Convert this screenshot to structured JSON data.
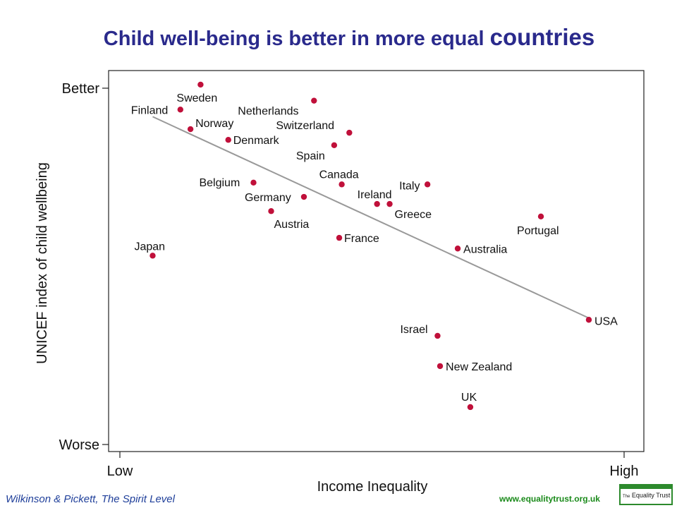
{
  "title": {
    "main": "Child well-being is better in more equal",
    "emphasis": "countries"
  },
  "credit": "Wilkinson & Pickett, The Spirit Level",
  "website": "www.equalitytrust.org.uk",
  "logo": {
    "small": "The",
    "text": "Equality Trust"
  },
  "colors": {
    "title": "#2a2a8c",
    "point": "#c0103a",
    "trend": "#999999",
    "credit": "#1f3f9a",
    "website": "#1a8a1a"
  },
  "chart_data": {
    "type": "scatter",
    "xlabel": "Income Inequality",
    "ylabel": "UNICEF index of child wellbeing",
    "x_ticks": [
      "Low",
      "High"
    ],
    "y_ticks": [
      "Better",
      "Worse"
    ],
    "xlim": [
      0,
      100
    ],
    "ylim": [
      0,
      100
    ],
    "grid": false,
    "points": [
      {
        "label": "Sweden",
        "x": 16,
        "y": 101
      },
      {
        "label": "Netherlands",
        "x": 38.5,
        "y": 96.5
      },
      {
        "label": "Finland",
        "x": 12,
        "y": 94
      },
      {
        "label": "Norway",
        "x": 14,
        "y": 88.5
      },
      {
        "label": "Switzerland",
        "x": 45.5,
        "y": 87.5
      },
      {
        "label": "Denmark",
        "x": 21.5,
        "y": 85.5
      },
      {
        "label": "Spain",
        "x": 42.5,
        "y": 84
      },
      {
        "label": "Canada",
        "x": 44,
        "y": 73
      },
      {
        "label": "Belgium",
        "x": 26.5,
        "y": 73.5
      },
      {
        "label": "Italy",
        "x": 61,
        "y": 73
      },
      {
        "label": "Germany",
        "x": 36.5,
        "y": 69.5
      },
      {
        "label": "Ireland",
        "x": 51,
        "y": 67.5
      },
      {
        "label": "Greece",
        "x": 53.5,
        "y": 67.5
      },
      {
        "label": "Austria",
        "x": 30,
        "y": 65.5
      },
      {
        "label": "Portugal",
        "x": 83.5,
        "y": 64
      },
      {
        "label": "France",
        "x": 43.5,
        "y": 58
      },
      {
        "label": "Australia",
        "x": 67,
        "y": 55
      },
      {
        "label": "Japan",
        "x": 6.5,
        "y": 53
      },
      {
        "label": "USA",
        "x": 93,
        "y": 35
      },
      {
        "label": "Israel",
        "x": 63,
        "y": 30.5
      },
      {
        "label": "New Zealand",
        "x": 63.5,
        "y": 22
      },
      {
        "label": "UK",
        "x": 69.5,
        "y": 10.5
      }
    ],
    "trendline": {
      "x": [
        6.5,
        93
      ],
      "y": [
        92,
        35.5
      ]
    }
  }
}
